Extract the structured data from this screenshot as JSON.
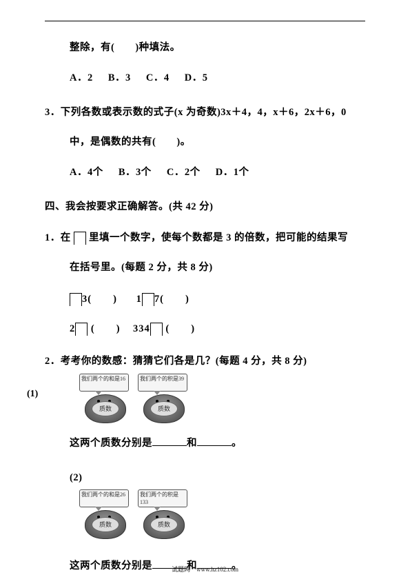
{
  "q2_cont": {
    "text": "整除，有(　　)种填法。",
    "choices": {
      "a": "A．2",
      "b": "B．3",
      "c": "C．4",
      "d": "D．5"
    }
  },
  "q3": {
    "num": "3．",
    "text1": "下列各数或表示数的式子(x 为奇数)3x＋4，4，x＋6，2x＋6，0",
    "text2": "中，是偶数的共有(　　)。",
    "choices": {
      "a": "A．4个",
      "b": "B．3个",
      "c": "C．2个",
      "d": "D．1个"
    }
  },
  "section4": {
    "heading": "四、我会按要求正确解答。(共 42 分)"
  },
  "s4q1": {
    "num": "1．",
    "text1_a": "在",
    "text1_b": "里填一个数字，使每个数都是 3 的倍数，把可能的结果写",
    "text2": "在括号里。(每题 2 分，共 8 分)",
    "row1a": "3(　　)",
    "row1b": "1",
    "row1c": "7(　　)",
    "row2a": "2",
    "row2b": "(　　)",
    "row2c": "334",
    "row2d": "(　　)"
  },
  "s4q2": {
    "num": "2．",
    "text": "考考你的数感：猜猜它们各是几？(每题 4 分，共 8 分)",
    "sub1": "(1)",
    "sub2": "(2)",
    "mole1a": "我们两个的和是16",
    "mole1b": "我们两个的积是39",
    "mole2a": "我们两个的和是26",
    "mole2b": "我们两个的积是133",
    "facelabel": "质数",
    "answer_a": "这两个质数分别是",
    "answer_b": "和",
    "answer_c": "。"
  },
  "footer": "试题网　www.hz102.com"
}
